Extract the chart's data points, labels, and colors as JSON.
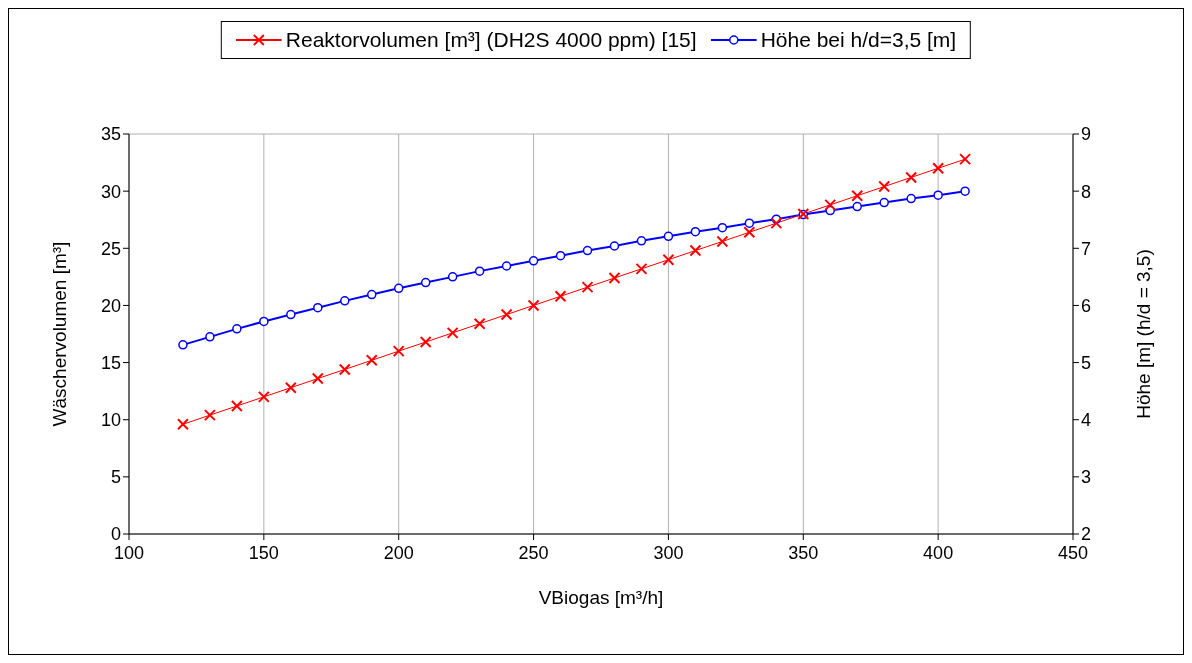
{
  "chart_data": {
    "type": "line",
    "xlabel": "VBiogas [m³/h]",
    "ylabel": "Wäschervolumen [m³]",
    "y2label": "Höhe [m] (h/d = 3,5)",
    "x": [
      120,
      130,
      140,
      150,
      160,
      170,
      180,
      190,
      200,
      210,
      220,
      230,
      240,
      250,
      260,
      270,
      280,
      290,
      300,
      310,
      320,
      330,
      340,
      350,
      360,
      370,
      380,
      390,
      400,
      410
    ],
    "series": [
      {
        "name": "Reaktorvolumen [m³] (DH2S 4000 ppm) [15]",
        "color": "#ff0000",
        "marker": "cross",
        "values": [
          9.6,
          10.4,
          11.2,
          12.0,
          12.8,
          13.6,
          14.4,
          15.2,
          16.0,
          16.8,
          17.6,
          18.4,
          19.2,
          20.0,
          20.8,
          21.6,
          22.4,
          23.2,
          24.0,
          24.8,
          25.6,
          26.4,
          27.2,
          28.0,
          28.8,
          29.6,
          30.4,
          31.2,
          32.0,
          32.8
        ]
      },
      {
        "name": "Höhe bei h/d=3,5 [m]",
        "color": "#0000ff",
        "marker": "circle",
        "axis": "y2",
        "values": [
          5.31,
          5.45,
          5.59,
          5.72,
          5.84,
          5.96,
          6.08,
          6.19,
          6.3,
          6.4,
          6.5,
          6.6,
          6.69,
          6.78,
          6.87,
          6.96,
          7.04,
          7.13,
          7.21,
          7.29,
          7.36,
          7.44,
          7.51,
          7.59,
          7.66,
          7.73,
          7.8,
          7.87,
          7.93,
          8.0
        ]
      }
    ],
    "xlim": [
      100,
      450
    ],
    "xticks": [
      100,
      150,
      200,
      250,
      300,
      350,
      400,
      450
    ],
    "ylim": [
      0,
      35
    ],
    "yticks": [
      0,
      5,
      10,
      15,
      20,
      25,
      30,
      35
    ],
    "y2lim": [
      2,
      9
    ],
    "y2ticks": [
      2,
      3,
      4,
      5,
      6,
      7,
      8,
      9
    ],
    "grid": true,
    "legend": "top",
    "line_style": "solid"
  }
}
